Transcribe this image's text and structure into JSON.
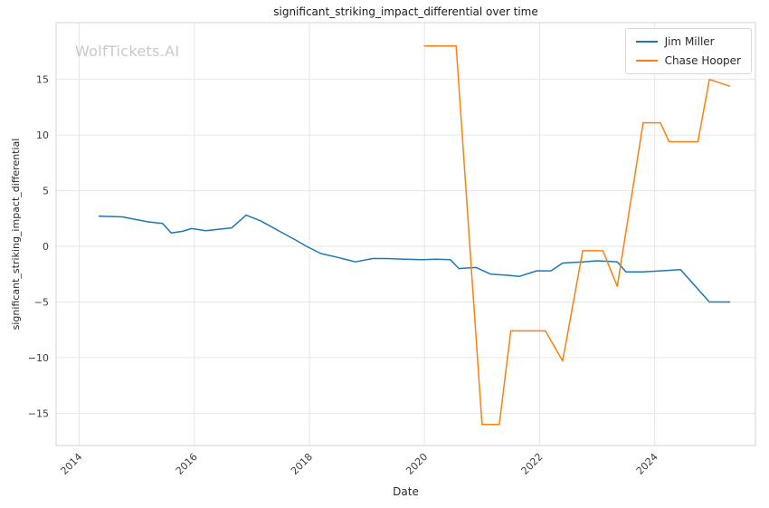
{
  "watermark": "WolfTickets.AI",
  "chart_data": {
    "type": "line",
    "title": "significant_striking_impact_differential over time",
    "xlabel": "Date",
    "ylabel": "significant_striking_impact_differential",
    "xlim": [
      2013.6,
      2025.75
    ],
    "ylim": [
      -17.9,
      20.1
    ],
    "xticks": [
      2014,
      2016,
      2018,
      2020,
      2022,
      2024
    ],
    "yticks": [
      -15,
      -10,
      -5,
      0,
      5,
      10,
      15
    ],
    "grid": true,
    "legend_position": "upper right",
    "colors": {
      "grid": "#e6e6e6",
      "frame": "#d6d6d6",
      "tick_text": "#3b3b3b"
    },
    "series": [
      {
        "name": "Jim Miller",
        "color": "#1f77b4",
        "x": [
          2014.35,
          2014.75,
          2015.2,
          2015.45,
          2015.6,
          2015.8,
          2015.95,
          2016.2,
          2016.45,
          2016.65,
          2016.9,
          2017.15,
          2017.5,
          2017.75,
          2017.95,
          2018.2,
          2018.5,
          2018.8,
          2019.1,
          2019.35,
          2019.65,
          2019.95,
          2020.2,
          2020.45,
          2020.6,
          2020.9,
          2021.15,
          2021.45,
          2021.65,
          2021.95,
          2022.2,
          2022.4,
          2022.75,
          2023.0,
          2023.2,
          2023.35,
          2023.5,
          2023.8,
          2024.1,
          2024.45,
          2024.95,
          2025.3
        ],
        "y": [
          2.7,
          2.65,
          2.2,
          2.05,
          1.2,
          1.35,
          1.6,
          1.4,
          1.55,
          1.65,
          2.8,
          2.3,
          1.3,
          0.6,
          0.0,
          -0.65,
          -1.0,
          -1.4,
          -1.1,
          -1.1,
          -1.15,
          -1.2,
          -1.15,
          -1.2,
          -2.0,
          -1.9,
          -2.5,
          -2.6,
          -2.7,
          -2.2,
          -2.2,
          -1.5,
          -1.4,
          -1.3,
          -1.35,
          -1.4,
          -2.3,
          -2.3,
          -2.2,
          -2.1,
          -5.0,
          -5.0
        ]
      },
      {
        "name": "Chase Hooper",
        "color": "#ff7f0e",
        "x": [
          2020.0,
          2020.55,
          2021.0,
          2021.3,
          2021.5,
          2022.1,
          2022.4,
          2022.75,
          2023.1,
          2023.35,
          2023.8,
          2024.1,
          2024.25,
          2024.75,
          2024.95,
          2025.3
        ],
        "y": [
          18.0,
          18.0,
          -16.0,
          -16.0,
          -7.6,
          -7.6,
          -10.3,
          -0.4,
          -0.4,
          -3.6,
          11.1,
          11.1,
          9.4,
          9.4,
          15.0,
          14.4
        ]
      }
    ]
  }
}
